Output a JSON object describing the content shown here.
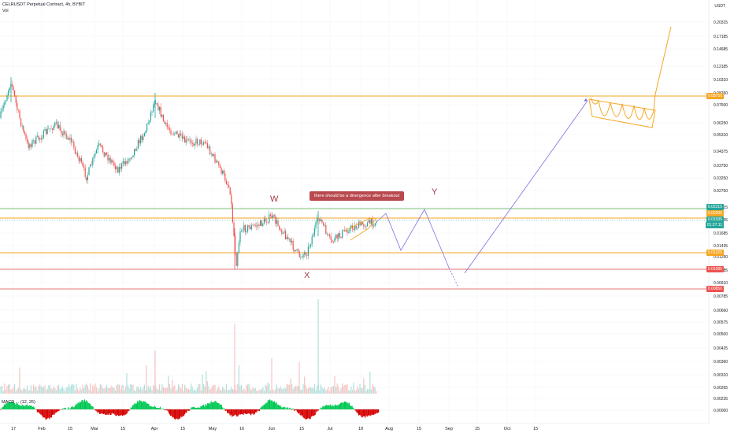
{
  "header": {
    "symbol_line": "CELRUSDT Perpetual Contract, 4h, BYBIT",
    "vol_label": "Vol"
  },
  "price_axis": {
    "unit": "USDT",
    "ticks": [
      "0.20315",
      "0.17185",
      "0.14685",
      "0.12185",
      "0.10310",
      "0.08750",
      "0.07500",
      "0.06250",
      "0.05310",
      "0.04375",
      "0.03750",
      "0.03250",
      "0.02750",
      "0.02215",
      "0.01935",
      "0.01685",
      "0.01435",
      "0.01250",
      "0.01085",
      "0.00910",
      "0.00785",
      "0.00660",
      "0.00575",
      "0.00500",
      "0.00425",
      "0.00360",
      "0.00310",
      "0.00265",
      "0.00235",
      "0.00000"
    ],
    "tags": [
      {
        "label": "0.08750",
        "color": "#f5a623"
      },
      {
        "label": "0.02215",
        "color": "#26a69a"
      },
      {
        "label": "0.02000",
        "color": "#f5a623"
      },
      {
        "label": "0.01935",
        "color": "#26a69a"
      },
      {
        "label": "01:27:11",
        "color": "#26a69a"
      },
      {
        "label": "0.01325",
        "color": "#f5a623"
      },
      {
        "label": "0.01085",
        "color": "#ef5350"
      },
      {
        "label": "0.00850",
        "color": "#ef5350"
      }
    ]
  },
  "time_axis": {
    "ticks": [
      "17",
      "Feb",
      "15",
      "Mar",
      "15",
      "Apr",
      "15",
      "May",
      "16",
      "Jun",
      "15",
      "Jul",
      "18",
      "Aug",
      "15",
      "Sep",
      "15",
      "Oct",
      "15"
    ]
  },
  "annotations": {
    "callout": "there should be a divergence  after breakout",
    "wave_w": "W",
    "wave_x": "X",
    "wave_y": "Y"
  },
  "macd_label": "MACD ... (12, 26)",
  "colors": {
    "up": "#26a69a",
    "down": "#ef5350",
    "orange": "#f5a623",
    "red_line": "#e04b4b",
    "green_line": "#4caf50",
    "projection": "#7e6ee0",
    "callout_bg": "#b8494f",
    "macd_up": "#00c853",
    "macd_down": "#d50000"
  },
  "chart_data": {
    "type": "line",
    "title": "CELRUSDT Perpetual Contract, 4h, BYBIT",
    "x_categories": [
      "17",
      "Feb",
      "15",
      "Mar",
      "15",
      "Apr",
      "15",
      "May",
      "16",
      "Jun",
      "15",
      "Jul",
      "18"
    ],
    "price_path": [
      0.06,
      0.102,
      0.055,
      0.06,
      0.05,
      0.042,
      0.049,
      0.092,
      0.06,
      0.05,
      0.034,
      0.012,
      0.018,
      0.02,
      0.016,
      0.0125,
      0.021,
      0.015,
      0.018,
      0.0195
    ],
    "horizontal_levels": [
      {
        "value": 0.0875,
        "color": "orange"
      },
      {
        "value": 0.02215,
        "color": "green"
      },
      {
        "value": 0.02,
        "color": "orange"
      },
      {
        "value": 0.01325,
        "color": "orange"
      },
      {
        "value": 0.01085,
        "color": "red"
      },
      {
        "value": 0.0085,
        "color": "red"
      }
    ],
    "projection_path": [
      0.0195,
      0.0215,
      0.0135,
      0.0215,
      0.0095,
      0.0105,
      0.082,
      0.055,
      0.09,
      0.21
    ]
  }
}
